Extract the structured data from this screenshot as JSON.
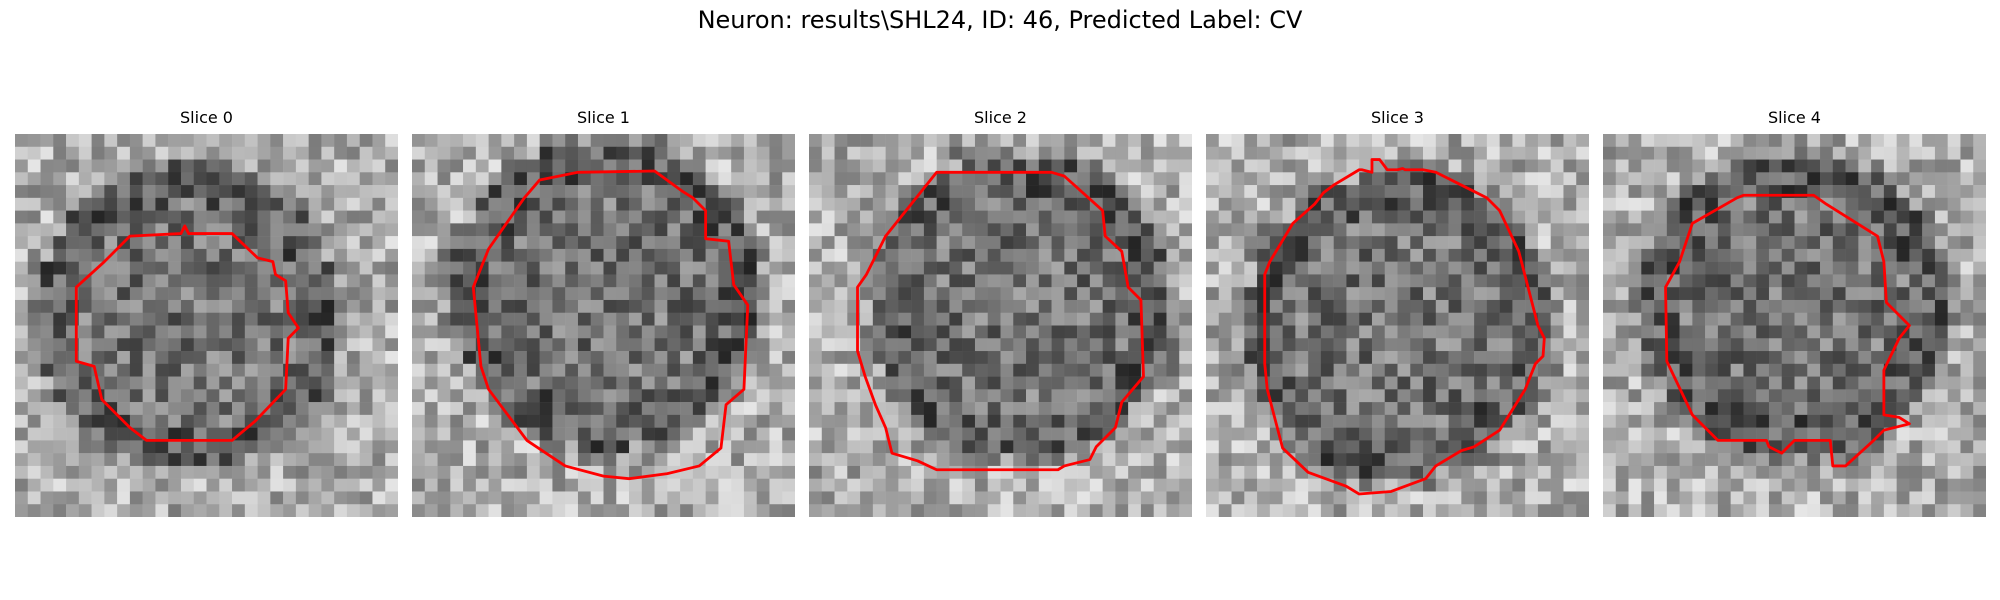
{
  "figure": {
    "title": "Neuron: results\\SHL24, ID: 46, Predicted Label: CV",
    "contour_color": "#ff0000",
    "colormap": "gray",
    "panels": [
      {
        "label": "Slice 0",
        "seed": 11,
        "dark_center": [
          0.45,
          0.48
        ]
      },
      {
        "label": "Slice 1",
        "seed": 23,
        "dark_center": [
          0.5,
          0.42
        ]
      },
      {
        "label": "Slice 2",
        "seed": 37,
        "dark_center": [
          0.55,
          0.45
        ]
      },
      {
        "label": "Slice 3",
        "seed": 41,
        "dark_center": [
          0.5,
          0.5
        ]
      },
      {
        "label": "Slice 4",
        "seed": 59,
        "dark_center": [
          0.5,
          0.45
        ]
      }
    ]
  }
}
